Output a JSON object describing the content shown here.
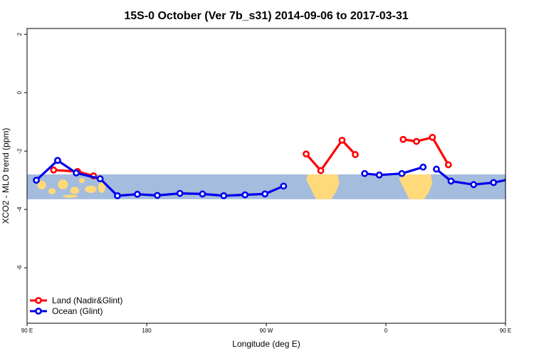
{
  "chart_data": {
    "type": "line",
    "title": "15S-0 October (Ver 7b_s31)   2014-09-06 to 2017-03-31",
    "xlabel": "Longitude (deg E)",
    "ylabel": "XCO2 - MLO trend (ppm)",
    "xlim": [
      90,
      450
    ],
    "ylim": [
      -7.9,
      2.2
    ],
    "xticks": [
      {
        "value": 90,
        "label": "90 E"
      },
      {
        "value": 180,
        "label": "180"
      },
      {
        "value": 270,
        "label": "90 W"
      },
      {
        "value": 360,
        "label": "0"
      },
      {
        "value": 450,
        "label": "90 E"
      },
      {
        "value": 540,
        "label": "180"
      }
    ],
    "yticks": [
      {
        "value": 2,
        "label": "2"
      },
      {
        "value": 0,
        "label": "0"
      },
      {
        "value": -2,
        "label": "-2"
      },
      {
        "value": -4,
        "label": "-4"
      },
      {
        "value": -6,
        "label": "-6"
      }
    ],
    "background_band": {
      "y_top": -2.8,
      "y_bottom": -3.65,
      "ocean_color": "#a4bcdd",
      "land_color": "#ffd97a"
    },
    "land_regions": [
      {
        "x0": 95,
        "x1": 150,
        "kind": "islands"
      },
      {
        "x0": 300,
        "x1": 325,
        "kind": "continent"
      },
      {
        "x0": 370,
        "x1": 395,
        "kind": "continent"
      },
      {
        "x0": 455,
        "x1": 510,
        "kind": "islands"
      }
    ],
    "legend_position": "bottom-left",
    "grid": false,
    "series": [
      {
        "name": "Land (Nadir&Glint)",
        "color": "#ff0000",
        "segments": [
          {
            "x": [
              110,
              128,
              140
            ],
            "y": [
              -2.65,
              -2.7,
              -2.85
            ]
          },
          {
            "x": [
              300,
              311,
              327,
              337
            ],
            "y": [
              -2.1,
              -2.67,
              -1.63,
              -2.12
            ]
          },
          {
            "x": [
              373,
              383,
              395,
              407
            ],
            "y": [
              -1.6,
              -1.67,
              -1.53,
              -2.47
            ]
          },
          {
            "x": [
              470,
              488,
              500
            ],
            "y": [
              -2.65,
              -2.7,
              -2.85
            ]
          }
        ]
      },
      {
        "name": "Ocean (Glint)",
        "color": "#0000ee",
        "segments": [
          {
            "x": [
              97,
              113,
              127,
              145,
              158,
              173,
              188,
              205,
              222,
              238,
              254,
              269,
              283
            ],
            "y": [
              -3.0,
              -2.32,
              -2.75,
              -2.95,
              -3.53,
              -3.48,
              -3.52,
              -3.45,
              -3.47,
              -3.53,
              -3.5,
              -3.47,
              -3.2
            ]
          },
          {
            "x": [
              344,
              355,
              372,
              388
            ],
            "y": [
              -2.77,
              -2.82,
              -2.77,
              -2.55
            ]
          },
          {
            "x": [
              398,
              409,
              426,
              441,
              452,
              469,
              484,
              499,
              515,
              529
            ],
            "y": [
              -2.62,
              -3.03,
              -3.15,
              -3.08,
              -2.98,
              -2.32,
              -2.75,
              -2.95,
              -3.53,
              -3.47
            ]
          }
        ]
      }
    ]
  }
}
